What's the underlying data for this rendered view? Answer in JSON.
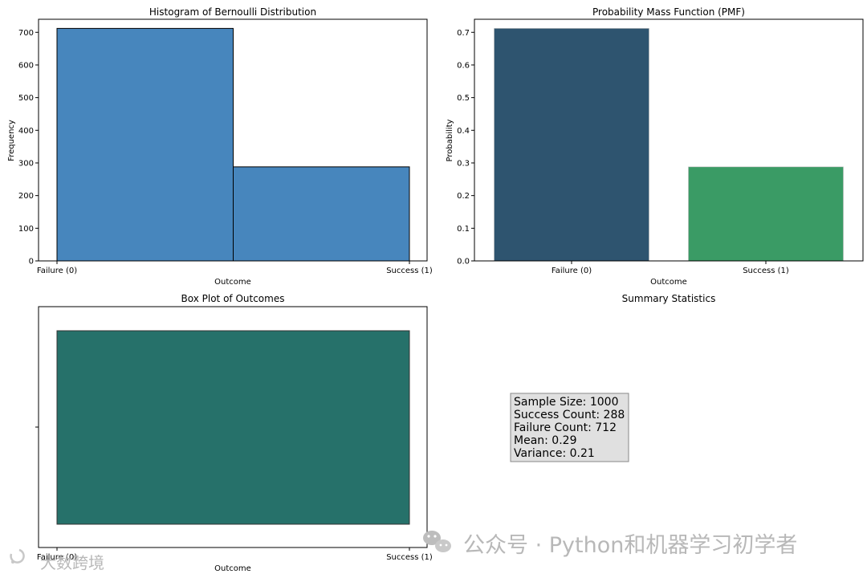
{
  "chart_data": [
    {
      "type": "bar",
      "title": "Histogram of Bernoulli Distribution",
      "xlabel": "Outcome",
      "ylabel": "Frequency",
      "categories": [
        "Failure (0)",
        "Success (1)"
      ],
      "values": [
        712,
        288
      ],
      "ylim": [
        0,
        740
      ],
      "yticks": [
        0,
        100,
        200,
        300,
        400,
        500,
        600,
        700
      ],
      "grid": false,
      "color": "#4786bd"
    },
    {
      "type": "bar",
      "title": "Probability Mass Function (PMF)",
      "xlabel": "Outcome",
      "ylabel": "Probability",
      "categories": [
        "Failure (0)",
        "Success (1)"
      ],
      "values": [
        0.712,
        0.288
      ],
      "ylim": [
        0,
        0.74
      ],
      "yticks": [
        "0.0",
        "0.1",
        "0.2",
        "0.3",
        "0.4",
        "0.5",
        "0.6",
        "0.7"
      ],
      "grid": false,
      "colors": [
        "#2e546f",
        "#3a9b65"
      ]
    },
    {
      "type": "box",
      "title": "Box Plot of Outcomes",
      "xlabel": "Outcome",
      "xticklabels": [
        "Failure (0)",
        "Success (1)"
      ],
      "box": {
        "min": 0,
        "q1": 0,
        "median": 0,
        "q3": 1,
        "max": 1
      },
      "color": "#26716a"
    }
  ],
  "summary": {
    "title": "Summary Statistics",
    "lines": [
      "Sample Size: 1000",
      "Success Count: 288",
      "Failure Count: 712",
      "Mean: 0.29",
      "Variance: 0.21"
    ]
  },
  "watermark": {
    "left": "大数跨境",
    "right": "公众号 · Python和机器学习初学者"
  }
}
